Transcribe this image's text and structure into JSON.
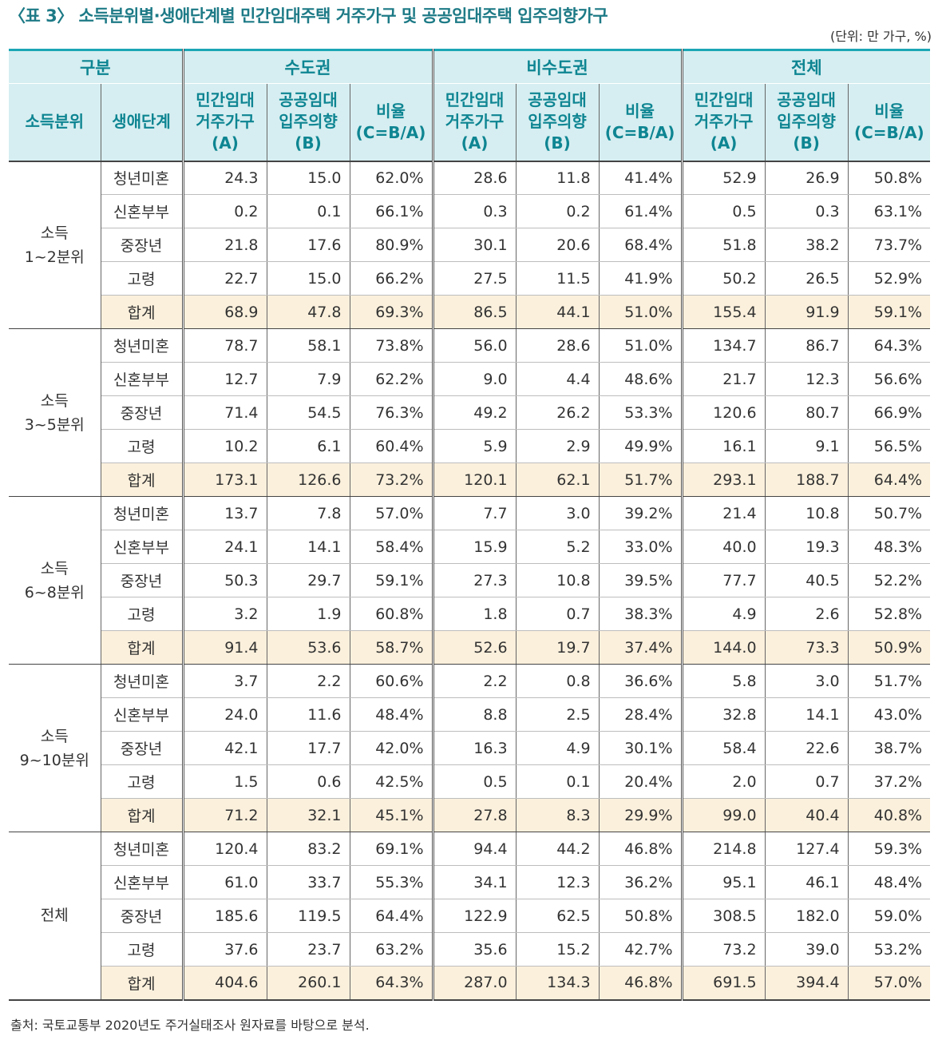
{
  "title": "〈표 3〉 소득분위별·생애단계별 민간임대주택 거주가구 및 공공임대주택 입주의향가구",
  "unit": "(단위: 만 가구, %)",
  "header": {
    "gubun": "구분",
    "regions": [
      "수도권",
      "비수도권",
      "전체"
    ],
    "col_income": "소득분위",
    "col_stage": "생애단계",
    "col_a": [
      "민간임대",
      "거주가구",
      "(A)"
    ],
    "col_b": [
      "공공임대",
      "입주의향",
      "(B)"
    ],
    "col_c": [
      "비율",
      "(C=B/A)"
    ]
  },
  "groups": [
    {
      "label": [
        "소득",
        "1~2분위"
      ],
      "rows": [
        {
          "stage": "청년미혼",
          "v": [
            "24.3",
            "15.0",
            "62.0%",
            "28.6",
            "11.8",
            "41.4%",
            "52.9",
            "26.9",
            "50.8%"
          ]
        },
        {
          "stage": "신혼부부",
          "v": [
            "0.2",
            "0.1",
            "66.1%",
            "0.3",
            "0.2",
            "61.4%",
            "0.5",
            "0.3",
            "63.1%"
          ]
        },
        {
          "stage": "중장년",
          "v": [
            "21.8",
            "17.6",
            "80.9%",
            "30.1",
            "20.6",
            "68.4%",
            "51.8",
            "38.2",
            "73.7%"
          ]
        },
        {
          "stage": "고령",
          "v": [
            "22.7",
            "15.0",
            "66.2%",
            "27.5",
            "11.5",
            "41.9%",
            "50.2",
            "26.5",
            "52.9%"
          ]
        },
        {
          "stage": "합계",
          "v": [
            "68.9",
            "47.8",
            "69.3%",
            "86.5",
            "44.1",
            "51.0%",
            "155.4",
            "91.9",
            "59.1%"
          ]
        }
      ]
    },
    {
      "label": [
        "소득",
        "3~5분위"
      ],
      "rows": [
        {
          "stage": "청년미혼",
          "v": [
            "78.7",
            "58.1",
            "73.8%",
            "56.0",
            "28.6",
            "51.0%",
            "134.7",
            "86.7",
            "64.3%"
          ]
        },
        {
          "stage": "신혼부부",
          "v": [
            "12.7",
            "7.9",
            "62.2%",
            "9.0",
            "4.4",
            "48.6%",
            "21.7",
            "12.3",
            "56.6%"
          ]
        },
        {
          "stage": "중장년",
          "v": [
            "71.4",
            "54.5",
            "76.3%",
            "49.2",
            "26.2",
            "53.3%",
            "120.6",
            "80.7",
            "66.9%"
          ]
        },
        {
          "stage": "고령",
          "v": [
            "10.2",
            "6.1",
            "60.4%",
            "5.9",
            "2.9",
            "49.9%",
            "16.1",
            "9.1",
            "56.5%"
          ]
        },
        {
          "stage": "합계",
          "v": [
            "173.1",
            "126.6",
            "73.2%",
            "120.1",
            "62.1",
            "51.7%",
            "293.1",
            "188.7",
            "64.4%"
          ]
        }
      ]
    },
    {
      "label": [
        "소득",
        "6~8분위"
      ],
      "rows": [
        {
          "stage": "청년미혼",
          "v": [
            "13.7",
            "7.8",
            "57.0%",
            "7.7",
            "3.0",
            "39.2%",
            "21.4",
            "10.8",
            "50.7%"
          ]
        },
        {
          "stage": "신혼부부",
          "v": [
            "24.1",
            "14.1",
            "58.4%",
            "15.9",
            "5.2",
            "33.0%",
            "40.0",
            "19.3",
            "48.3%"
          ]
        },
        {
          "stage": "중장년",
          "v": [
            "50.3",
            "29.7",
            "59.1%",
            "27.3",
            "10.8",
            "39.5%",
            "77.7",
            "40.5",
            "52.2%"
          ]
        },
        {
          "stage": "고령",
          "v": [
            "3.2",
            "1.9",
            "60.8%",
            "1.8",
            "0.7",
            "38.3%",
            "4.9",
            "2.6",
            "52.8%"
          ]
        },
        {
          "stage": "합계",
          "v": [
            "91.4",
            "53.6",
            "58.7%",
            "52.6",
            "19.7",
            "37.4%",
            "144.0",
            "73.3",
            "50.9%"
          ]
        }
      ]
    },
    {
      "label": [
        "소득",
        "9~10분위"
      ],
      "rows": [
        {
          "stage": "청년미혼",
          "v": [
            "3.7",
            "2.2",
            "60.6%",
            "2.2",
            "0.8",
            "36.6%",
            "5.8",
            "3.0",
            "51.7%"
          ]
        },
        {
          "stage": "신혼부부",
          "v": [
            "24.0",
            "11.6",
            "48.4%",
            "8.8",
            "2.5",
            "28.4%",
            "32.8",
            "14.1",
            "43.0%"
          ]
        },
        {
          "stage": "중장년",
          "v": [
            "42.1",
            "17.7",
            "42.0%",
            "16.3",
            "4.9",
            "30.1%",
            "58.4",
            "22.6",
            "38.7%"
          ]
        },
        {
          "stage": "고령",
          "v": [
            "1.5",
            "0.6",
            "42.5%",
            "0.5",
            "0.1",
            "20.4%",
            "2.0",
            "0.7",
            "37.2%"
          ]
        },
        {
          "stage": "합계",
          "v": [
            "71.2",
            "32.1",
            "45.1%",
            "27.8",
            "8.3",
            "29.9%",
            "99.0",
            "40.4",
            "40.8%"
          ]
        }
      ]
    },
    {
      "label": [
        "전체"
      ],
      "rows": [
        {
          "stage": "청년미혼",
          "v": [
            "120.4",
            "83.2",
            "69.1%",
            "94.4",
            "44.2",
            "46.8%",
            "214.8",
            "127.4",
            "59.3%"
          ]
        },
        {
          "stage": "신혼부부",
          "v": [
            "61.0",
            "33.7",
            "55.3%",
            "34.1",
            "12.3",
            "36.2%",
            "95.1",
            "46.1",
            "48.4%"
          ]
        },
        {
          "stage": "중장년",
          "v": [
            "185.6",
            "119.5",
            "64.4%",
            "122.9",
            "62.5",
            "50.8%",
            "308.5",
            "182.0",
            "59.0%"
          ]
        },
        {
          "stage": "고령",
          "v": [
            "37.6",
            "23.7",
            "63.2%",
            "35.6",
            "15.2",
            "42.7%",
            "73.2",
            "39.0",
            "53.2%"
          ]
        },
        {
          "stage": "합계",
          "v": [
            "404.6",
            "260.1",
            "64.3%",
            "287.0",
            "134.3",
            "46.8%",
            "691.5",
            "394.4",
            "57.0%"
          ]
        }
      ]
    }
  ],
  "source": "출처: 국토교통부 2020년도 주거실태조사 원자료를 바탕으로 분석."
}
